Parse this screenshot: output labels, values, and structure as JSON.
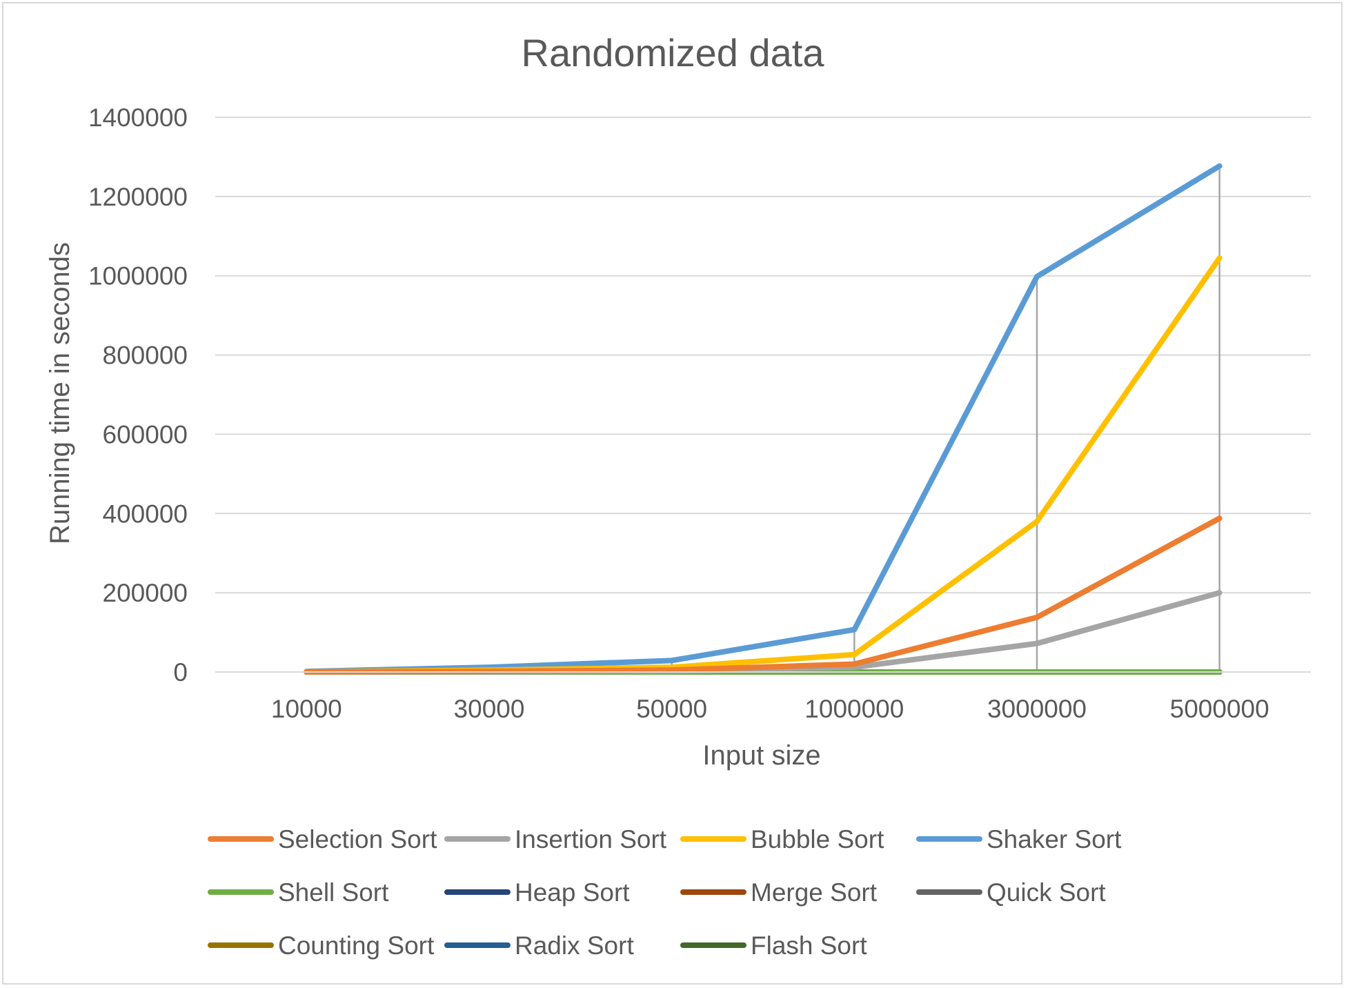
{
  "chart_data": {
    "type": "line",
    "title": "Randomized data",
    "xlabel": "Input size",
    "ylabel": "Running time in seconds",
    "categories": [
      "10000",
      "30000",
      "50000",
      "1000000",
      "3000000",
      "5000000"
    ],
    "ylim": [
      0,
      1400000
    ],
    "yticks": [
      0,
      200000,
      400000,
      600000,
      800000,
      1000000,
      1200000,
      1400000
    ],
    "grid": true,
    "drop_lines": true,
    "legend_position": "bottom",
    "series": [
      {
        "name": "Selection Sort",
        "color": "#ED7D31",
        "values": [
          200,
          1800,
          5000,
          20000,
          138000,
          388000
        ]
      },
      {
        "name": "Insertion Sort",
        "color": "#A5A5A5",
        "values": [
          100,
          800,
          2500,
          12000,
          72000,
          200000
        ]
      },
      {
        "name": "Bubble Sort",
        "color": "#FFC000",
        "values": [
          500,
          4500,
          12000,
          44000,
          380000,
          1045000
        ]
      },
      {
        "name": "Shaker Sort",
        "color": "#5B9BD5",
        "values": [
          1500,
          12000,
          29000,
          107000,
          998000,
          1277000
        ]
      },
      {
        "name": "Shell Sort",
        "color": "#70AD47",
        "values": [
          0,
          0,
          0,
          0,
          0,
          0
        ]
      },
      {
        "name": "Heap Sort",
        "color": "#264478",
        "values": [
          0,
          0,
          0,
          0,
          0,
          0
        ]
      },
      {
        "name": "Merge Sort",
        "color": "#9E480E",
        "values": [
          0,
          0,
          0,
          0,
          0,
          0
        ]
      },
      {
        "name": "Quick Sort",
        "color": "#636363",
        "values": [
          0,
          0,
          0,
          0,
          0,
          0
        ]
      },
      {
        "name": "Counting Sort",
        "color": "#997300",
        "values": [
          0,
          0,
          0,
          0,
          0,
          0
        ]
      },
      {
        "name": "Radix Sort",
        "color": "#255E91",
        "values": [
          0,
          0,
          0,
          0,
          0,
          0
        ]
      },
      {
        "name": "Flash Sort",
        "color": "#43682B",
        "values": [
          0,
          0,
          0,
          0,
          0,
          0
        ]
      }
    ]
  }
}
